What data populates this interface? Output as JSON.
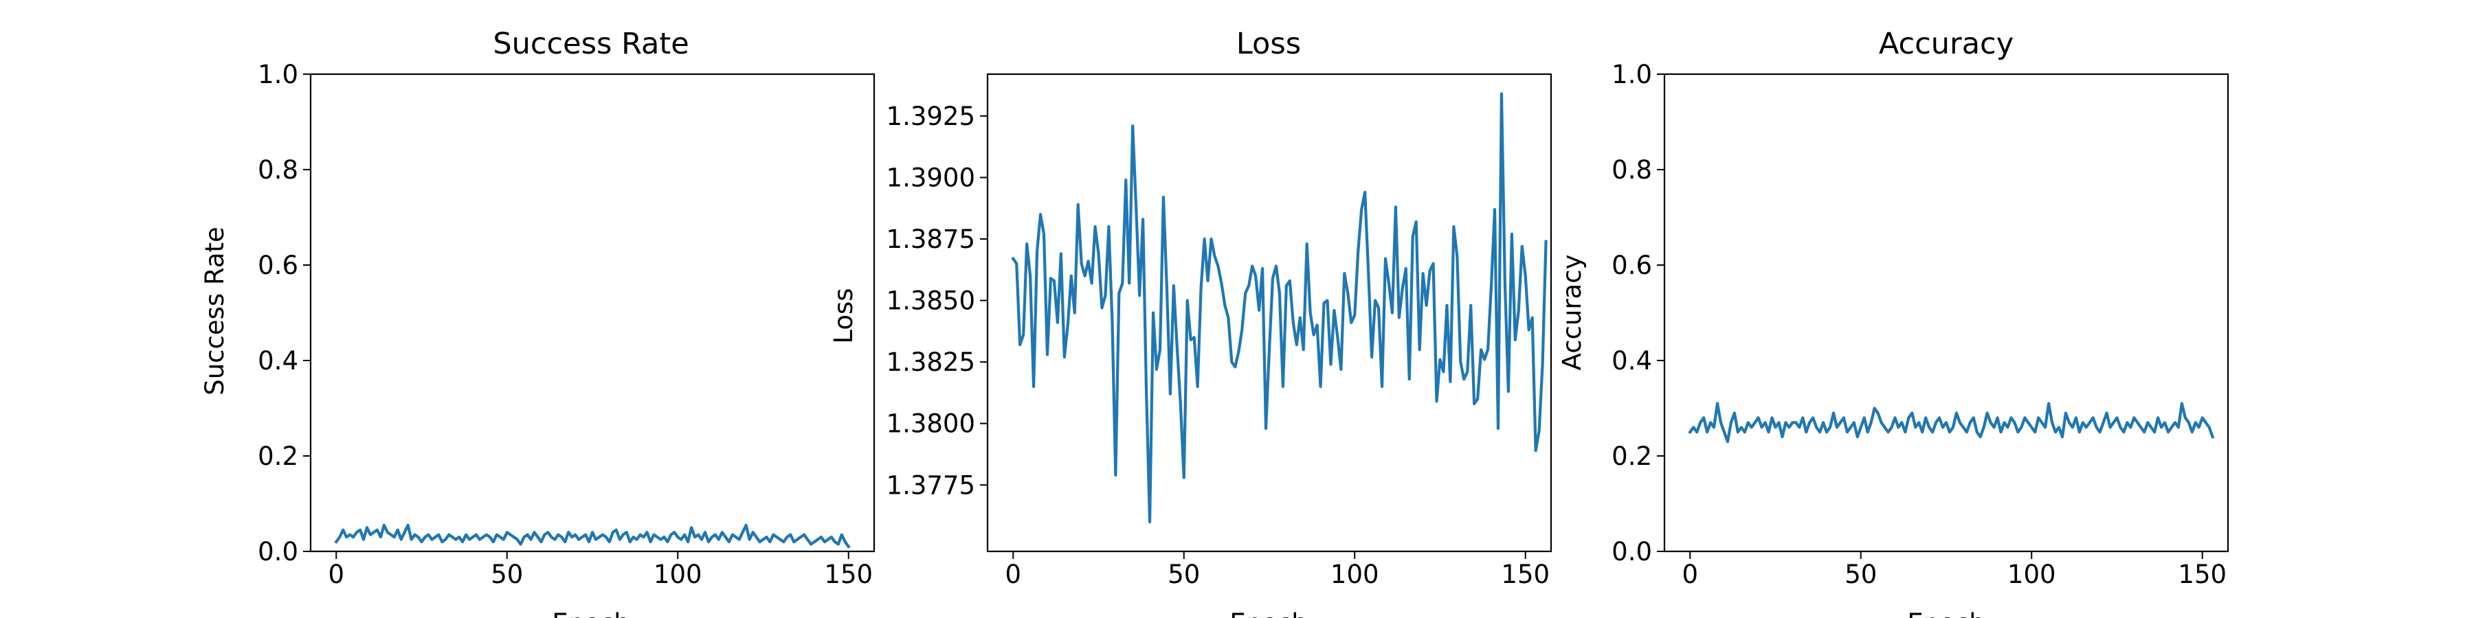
{
  "figure": {
    "panels": [
      {
        "title": "Success Rate",
        "xlabel": "Epoch",
        "ylabel": "Success Rate"
      },
      {
        "title": "Loss",
        "xlabel": "Epoch",
        "ylabel": "Loss"
      },
      {
        "title": "Accuracy",
        "xlabel": "Epoch",
        "ylabel": "Accuracy"
      }
    ]
  },
  "colors": {
    "line": "#1f77b4",
    "axes": "#000000",
    "background": "#ffffff"
  },
  "chart_data": [
    {
      "type": "line",
      "title": "Success Rate",
      "xlabel": "Epoch",
      "ylabel": "Success Rate",
      "xlim": [
        -7.5,
        157.5
      ],
      "ylim": [
        0.0,
        1.0
      ],
      "xticks": [
        0,
        50,
        100,
        150
      ],
      "yticks": [
        0.0,
        0.2,
        0.4,
        0.6,
        0.8,
        1.0
      ],
      "ytick_labels": [
        "0.0",
        "0.2",
        "0.4",
        "0.6",
        "0.8",
        "1.0"
      ],
      "grid": false,
      "series": [
        {
          "x_start": 0,
          "x_step": 1,
          "values": [
            0.02,
            0.03,
            0.045,
            0.03,
            0.035,
            0.03,
            0.04,
            0.045,
            0.025,
            0.05,
            0.035,
            0.04,
            0.045,
            0.03,
            0.055,
            0.04,
            0.035,
            0.03,
            0.045,
            0.025,
            0.04,
            0.055,
            0.025,
            0.035,
            0.03,
            0.02,
            0.03,
            0.035,
            0.025,
            0.03,
            0.035,
            0.02,
            0.025,
            0.035,
            0.03,
            0.025,
            0.03,
            0.02,
            0.035,
            0.025,
            0.03,
            0.035,
            0.025,
            0.03,
            0.035,
            0.03,
            0.02,
            0.035,
            0.03,
            0.025,
            0.04,
            0.035,
            0.03,
            0.025,
            0.015,
            0.03,
            0.035,
            0.025,
            0.04,
            0.03,
            0.02,
            0.035,
            0.04,
            0.03,
            0.025,
            0.035,
            0.03,
            0.02,
            0.04,
            0.03,
            0.035,
            0.025,
            0.03,
            0.035,
            0.02,
            0.04,
            0.025,
            0.03,
            0.035,
            0.03,
            0.02,
            0.04,
            0.045,
            0.025,
            0.035,
            0.04,
            0.02,
            0.03,
            0.025,
            0.035,
            0.03,
            0.04,
            0.02,
            0.035,
            0.03,
            0.025,
            0.03,
            0.02,
            0.035,
            0.04,
            0.03,
            0.025,
            0.035,
            0.02,
            0.05,
            0.03,
            0.035,
            0.025,
            0.04,
            0.02,
            0.03,
            0.035,
            0.025,
            0.04,
            0.03,
            0.02,
            0.035,
            0.03,
            0.025,
            0.04,
            0.055,
            0.025,
            0.04,
            0.03,
            0.02,
            0.025,
            0.03,
            0.02,
            0.035,
            0.03,
            0.025,
            0.02,
            0.03,
            0.035,
            0.02,
            0.025,
            0.03,
            0.035,
            0.025,
            0.015,
            0.02,
            0.025,
            0.03,
            0.02,
            0.025,
            0.03,
            0.02,
            0.015,
            0.035,
            0.02,
            0.01
          ]
        }
      ]
    },
    {
      "type": "line",
      "title": "Loss",
      "xlabel": "Epoch",
      "ylabel": "Loss",
      "xlim": [
        -7.5,
        157.5
      ],
      "ylim": [
        1.3748,
        1.3942
      ],
      "xticks": [
        0,
        50,
        100,
        150
      ],
      "yticks": [
        1.3775,
        1.38,
        1.3825,
        1.385,
        1.3875,
        1.39,
        1.3925
      ],
      "ytick_labels": [
        "1.3775",
        "1.3800",
        "1.3825",
        "1.3850",
        "1.3875",
        "1.3900",
        "1.3925"
      ],
      "grid": false,
      "series": [
        {
          "x_start": 0,
          "x_step": 1,
          "values": [
            1.3867,
            1.3865,
            1.3832,
            1.3836,
            1.3873,
            1.386,
            1.3815,
            1.387,
            1.3885,
            1.3877,
            1.3828,
            1.3859,
            1.3858,
            1.3841,
            1.3869,
            1.3827,
            1.384,
            1.386,
            1.3845,
            1.3889,
            1.3865,
            1.386,
            1.3866,
            1.3857,
            1.388,
            1.3869,
            1.3847,
            1.3852,
            1.388,
            1.3842,
            1.3779,
            1.3853,
            1.3857,
            1.3899,
            1.3857,
            1.3921,
            1.3888,
            1.3852,
            1.3883,
            1.3813,
            1.376,
            1.3845,
            1.3822,
            1.383,
            1.3892,
            1.3855,
            1.3812,
            1.3856,
            1.3831,
            1.3808,
            1.3778,
            1.385,
            1.3834,
            1.3835,
            1.3815,
            1.3855,
            1.3875,
            1.3858,
            1.3875,
            1.3868,
            1.3864,
            1.3857,
            1.3848,
            1.3843,
            1.3825,
            1.3823,
            1.3829,
            1.3838,
            1.3853,
            1.3856,
            1.3864,
            1.386,
            1.3846,
            1.3863,
            1.3798,
            1.383,
            1.3859,
            1.3864,
            1.3853,
            1.3815,
            1.3856,
            1.3858,
            1.3841,
            1.3832,
            1.3843,
            1.383,
            1.3873,
            1.3845,
            1.3836,
            1.384,
            1.3815,
            1.3849,
            1.385,
            1.3824,
            1.3846,
            1.3835,
            1.3822,
            1.3861,
            1.3853,
            1.3841,
            1.3844,
            1.387,
            1.3887,
            1.3894,
            1.3862,
            1.3827,
            1.385,
            1.3847,
            1.3815,
            1.3867,
            1.3857,
            1.3845,
            1.3888,
            1.3843,
            1.3855,
            1.3863,
            1.3818,
            1.3876,
            1.3882,
            1.383,
            1.3861,
            1.3848,
            1.3862,
            1.3865,
            1.3809,
            1.3826,
            1.3821,
            1.3848,
            1.3817,
            1.388,
            1.3868,
            1.3825,
            1.3818,
            1.3821,
            1.3848,
            1.3808,
            1.381,
            1.383,
            1.3826,
            1.383,
            1.3856,
            1.3887,
            1.3798,
            1.3934,
            1.3857,
            1.3813,
            1.3877,
            1.3834,
            1.3846,
            1.3872,
            1.386,
            1.3838,
            1.3843,
            1.3789,
            1.3797,
            1.3824,
            1.3874
          ]
        }
      ]
    },
    {
      "type": "line",
      "title": "Accuracy",
      "xlabel": "Epoch",
      "ylabel": "Accuracy",
      "xlim": [
        -7.5,
        157.5
      ],
      "ylim": [
        0.0,
        1.0
      ],
      "xticks": [
        0,
        50,
        100,
        150
      ],
      "yticks": [
        0.0,
        0.2,
        0.4,
        0.6,
        0.8,
        1.0
      ],
      "ytick_labels": [
        "0.0",
        "0.2",
        "0.4",
        "0.6",
        "0.8",
        "1.0"
      ],
      "grid": false,
      "series": [
        {
          "x_start": 0,
          "x_step": 1,
          "values": [
            0.25,
            0.26,
            0.25,
            0.27,
            0.28,
            0.25,
            0.27,
            0.26,
            0.31,
            0.27,
            0.25,
            0.23,
            0.27,
            0.29,
            0.25,
            0.26,
            0.25,
            0.27,
            0.26,
            0.27,
            0.28,
            0.26,
            0.27,
            0.25,
            0.28,
            0.26,
            0.27,
            0.24,
            0.27,
            0.26,
            0.27,
            0.27,
            0.26,
            0.28,
            0.25,
            0.27,
            0.28,
            0.26,
            0.25,
            0.27,
            0.25,
            0.26,
            0.29,
            0.26,
            0.27,
            0.28,
            0.25,
            0.26,
            0.27,
            0.24,
            0.26,
            0.28,
            0.25,
            0.27,
            0.3,
            0.29,
            0.27,
            0.26,
            0.25,
            0.26,
            0.28,
            0.26,
            0.27,
            0.25,
            0.28,
            0.29,
            0.26,
            0.27,
            0.25,
            0.28,
            0.26,
            0.25,
            0.27,
            0.28,
            0.26,
            0.27,
            0.25,
            0.26,
            0.29,
            0.27,
            0.26,
            0.25,
            0.27,
            0.28,
            0.25,
            0.24,
            0.26,
            0.29,
            0.27,
            0.26,
            0.28,
            0.25,
            0.27,
            0.26,
            0.28,
            0.27,
            0.25,
            0.26,
            0.28,
            0.27,
            0.26,
            0.25,
            0.28,
            0.27,
            0.26,
            0.31,
            0.27,
            0.25,
            0.26,
            0.24,
            0.29,
            0.27,
            0.26,
            0.28,
            0.25,
            0.27,
            0.26,
            0.27,
            0.28,
            0.26,
            0.25,
            0.27,
            0.29,
            0.26,
            0.27,
            0.28,
            0.26,
            0.25,
            0.27,
            0.26,
            0.28,
            0.27,
            0.26,
            0.25,
            0.27,
            0.26,
            0.25,
            0.28,
            0.26,
            0.27,
            0.25,
            0.26,
            0.27,
            0.26,
            0.31,
            0.28,
            0.27,
            0.25,
            0.27,
            0.26,
            0.28,
            0.27,
            0.26,
            0.24
          ]
        }
      ]
    }
  ]
}
